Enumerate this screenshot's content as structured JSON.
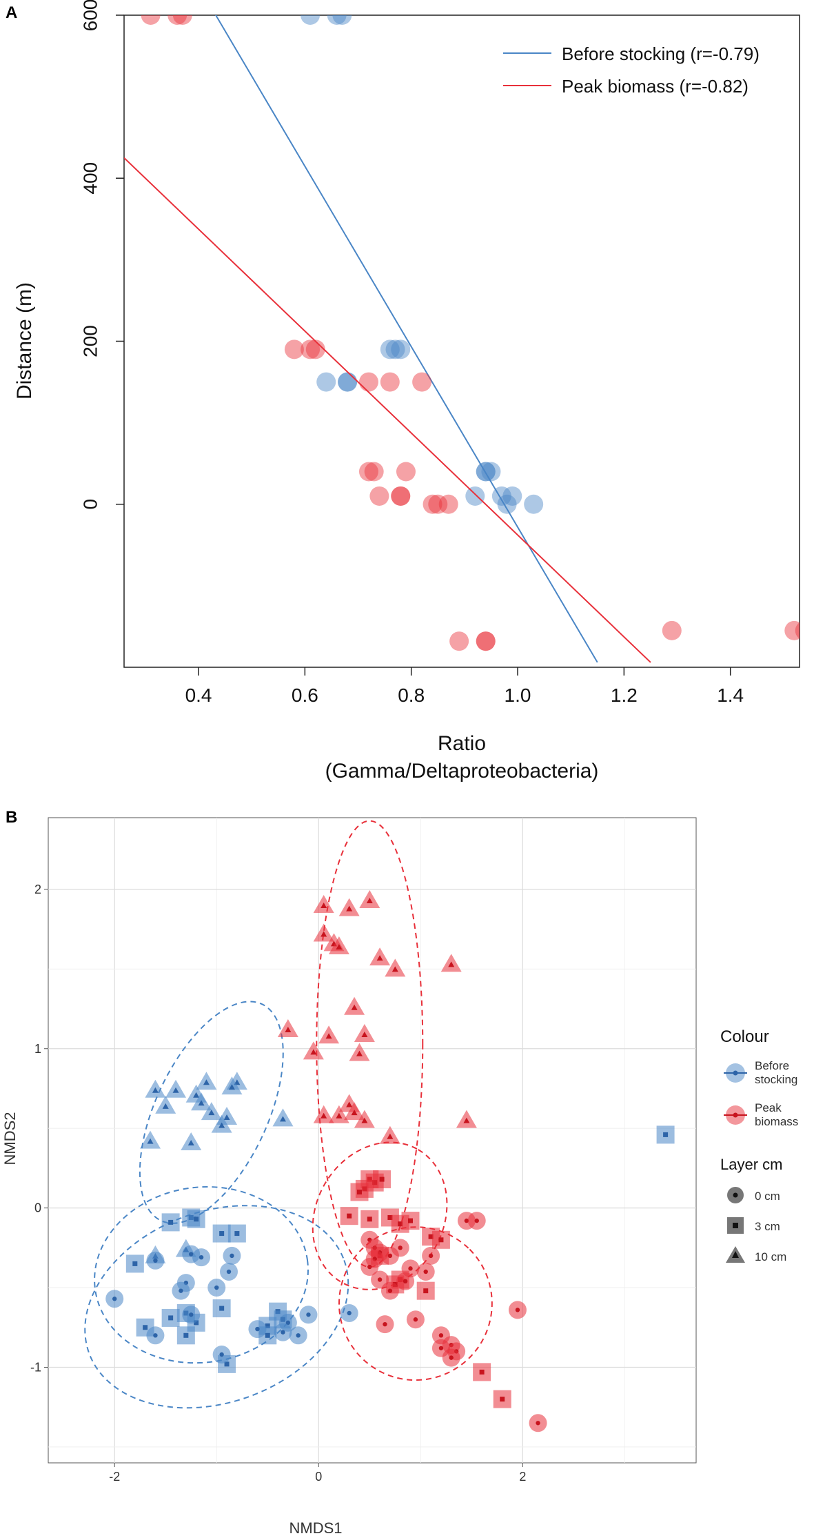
{
  "chart_data": [
    {
      "panel": "A",
      "type": "scatter",
      "title": "",
      "xlabel": "Ratio",
      "xlabel2": "(Gamma/Deltaproteobacteria)",
      "ylabel": "Distance (m)",
      "xlim": [
        0.26,
        1.53
      ],
      "ylim": [
        -200,
        600
      ],
      "xticks": [
        "0.4",
        "0.6",
        "0.8",
        "1.0",
        "1.2",
        "1.4"
      ],
      "yticks": [
        "0",
        "200",
        "400",
        "600"
      ],
      "colors": {
        "before": "#4a86c6",
        "peak": "#e8303a"
      },
      "legend": [
        "Before stocking (r=-0.79)",
        "Peak biomass (r=-0.82)"
      ],
      "series": [
        {
          "name": "Before stocking",
          "color": "#4a86c6",
          "line": {
            "x1": 0.4,
            "y1": 636,
            "x2": 1.15,
            "y2": -194
          },
          "points": [
            [
              0.61,
              600
            ],
            [
              0.66,
              600
            ],
            [
              0.67,
              600
            ],
            [
              0.77,
              190
            ],
            [
              0.78,
              190
            ],
            [
              0.76,
              190
            ],
            [
              0.64,
              150
            ],
            [
              0.68,
              150
            ],
            [
              0.68,
              150
            ],
            [
              0.94,
              40
            ],
            [
              0.95,
              40
            ],
            [
              0.94,
              40
            ],
            [
              0.92,
              10
            ],
            [
              0.97,
              10
            ],
            [
              0.99,
              10
            ],
            [
              0.98,
              0
            ],
            [
              1.03,
              0
            ]
          ]
        },
        {
          "name": "Peak biomass",
          "color": "#e8303a",
          "line": {
            "x1": 0.26,
            "y1": 425,
            "x2": 1.25,
            "y2": -194
          },
          "points": [
            [
              0.31,
              600
            ],
            [
              0.36,
              600
            ],
            [
              0.37,
              600
            ],
            [
              0.58,
              190
            ],
            [
              0.61,
              190
            ],
            [
              0.62,
              190
            ],
            [
              0.72,
              150
            ],
            [
              0.76,
              150
            ],
            [
              0.82,
              150
            ],
            [
              0.72,
              40
            ],
            [
              0.73,
              40
            ],
            [
              0.79,
              40
            ],
            [
              0.74,
              10
            ],
            [
              0.78,
              10
            ],
            [
              0.78,
              10
            ],
            [
              0.84,
              0
            ],
            [
              0.85,
              0
            ],
            [
              0.87,
              0
            ],
            [
              0.89,
              -168
            ],
            [
              0.94,
              -168
            ],
            [
              0.94,
              -168
            ],
            [
              1.29,
              -155
            ],
            [
              1.52,
              -155
            ],
            [
              1.54,
              -155
            ]
          ]
        }
      ]
    },
    {
      "panel": "B",
      "type": "scatter",
      "title": "",
      "xlabel": "NMDS1",
      "ylabel": "NMDS2",
      "xlim": [
        -2.65,
        3.7
      ],
      "ylim": [
        -1.6,
        2.45
      ],
      "xticks": [
        "-2",
        "0",
        "2"
      ],
      "yticks": [
        "-1",
        "0",
        "1",
        "2"
      ],
      "legend_colour_title": "Colour",
      "legend_colour": [
        {
          "label1": "Before",
          "label2": "stocking",
          "color": "#4a86c6"
        },
        {
          "label1": "Peak",
          "label2": "biomass",
          "color": "#e8303a"
        }
      ],
      "legend_layer_title": "Layer  cm",
      "legend_layer": [
        "0 cm",
        "3 cm",
        "10 cm"
      ],
      "ellipses": [
        {
          "group": "before-0cm",
          "color": "#4a86c6",
          "cx": -1.0,
          "cy": -0.62,
          "rx": 1.33,
          "ry": 0.6,
          "angle": 20
        },
        {
          "group": "before-3cm",
          "color": "#4a86c6",
          "cx": -1.15,
          "cy": -0.42,
          "rx": 1.05,
          "ry": 0.55,
          "angle": 8
        },
        {
          "group": "before-10cm",
          "color": "#4a86c6",
          "cx": -1.05,
          "cy": 0.6,
          "rx": 0.55,
          "ry": 0.75,
          "angle": -25
        },
        {
          "group": "peak-10cm",
          "color": "#e8303a",
          "cx": 0.5,
          "cy": 1.03,
          "rx": 0.52,
          "ry": 1.4,
          "angle": 0
        },
        {
          "group": "peak-0cm",
          "color": "#e8303a",
          "cx": 0.95,
          "cy": -0.6,
          "rx": 0.75,
          "ry": 0.48,
          "angle": 45
        },
        {
          "group": "peak-3cm",
          "color": "#e8303a",
          "cx": 0.6,
          "cy": -0.05,
          "rx": 0.75,
          "ry": 0.4,
          "angle": 60
        }
      ],
      "series": [
        {
          "name": "Before stocking - 10 cm",
          "color": "#4a86c6",
          "shape": "triangle",
          "points": [
            [
              -1.6,
              0.74
            ],
            [
              -1.4,
              0.74
            ],
            [
              -1.5,
              0.64
            ],
            [
              -1.2,
              0.71
            ],
            [
              -1.1,
              0.79
            ],
            [
              -1.15,
              0.66
            ],
            [
              -1.05,
              0.6
            ],
            [
              -0.9,
              0.57
            ],
            [
              -0.8,
              0.79
            ],
            [
              -0.85,
              0.76
            ],
            [
              -0.95,
              0.52
            ],
            [
              -1.65,
              0.42
            ],
            [
              -1.25,
              0.41
            ],
            [
              -0.35,
              0.56
            ],
            [
              -1.6,
              -0.3
            ],
            [
              -1.3,
              -0.26
            ]
          ]
        },
        {
          "name": "Before stocking - 3 cm",
          "color": "#4a86c6",
          "shape": "square",
          "points": [
            [
              -1.45,
              -0.09
            ],
            [
              -1.25,
              -0.06
            ],
            [
              -1.2,
              -0.07
            ],
            [
              -0.95,
              -0.16
            ],
            [
              -0.8,
              -0.16
            ],
            [
              -1.8,
              -0.35
            ],
            [
              -1.7,
              -0.75
            ],
            [
              -1.45,
              -0.69
            ],
            [
              -1.3,
              -0.66
            ],
            [
              -1.2,
              -0.72
            ],
            [
              -1.3,
              -0.8
            ],
            [
              -0.95,
              -0.63
            ],
            [
              -0.9,
              -0.98
            ],
            [
              -0.5,
              -0.74
            ],
            [
              -0.4,
              -0.65
            ],
            [
              -0.35,
              -0.7
            ],
            [
              -0.5,
              -0.8
            ],
            [
              3.4,
              0.46
            ]
          ]
        },
        {
          "name": "Before stocking - 0 cm",
          "color": "#4a86c6",
          "shape": "circle",
          "points": [
            [
              -2.0,
              -0.57
            ],
            [
              -1.6,
              -0.33
            ],
            [
              -1.3,
              -0.47
            ],
            [
              -1.25,
              -0.29
            ],
            [
              -1.15,
              -0.31
            ],
            [
              -0.85,
              -0.3
            ],
            [
              -0.88,
              -0.4
            ],
            [
              -1.0,
              -0.5
            ],
            [
              -1.35,
              -0.52
            ],
            [
              -1.25,
              -0.67
            ],
            [
              -1.6,
              -0.8
            ],
            [
              -0.95,
              -0.92
            ],
            [
              -0.6,
              -0.76
            ],
            [
              -0.3,
              -0.72
            ],
            [
              -0.2,
              -0.8
            ],
            [
              -0.1,
              -0.67
            ],
            [
              0.3,
              -0.66
            ],
            [
              -0.35,
              -0.78
            ]
          ]
        },
        {
          "name": "Peak biomass - 10 cm",
          "color": "#e8303a",
          "shape": "triangle",
          "points": [
            [
              0.05,
              1.9
            ],
            [
              0.3,
              1.88
            ],
            [
              0.5,
              1.93
            ],
            [
              0.05,
              1.72
            ],
            [
              0.15,
              1.66
            ],
            [
              0.2,
              1.64
            ],
            [
              0.6,
              1.57
            ],
            [
              0.75,
              1.5
            ],
            [
              1.3,
              1.53
            ],
            [
              0.35,
              1.26
            ],
            [
              -0.3,
              1.12
            ],
            [
              0.1,
              1.08
            ],
            [
              0.45,
              1.09
            ],
            [
              -0.05,
              0.98
            ],
            [
              0.4,
              0.97
            ],
            [
              0.3,
              0.65
            ],
            [
              0.35,
              0.6
            ],
            [
              0.2,
              0.58
            ],
            [
              0.05,
              0.58
            ],
            [
              0.45,
              0.55
            ],
            [
              0.7,
              0.45
            ],
            [
              1.45,
              0.55
            ]
          ]
        },
        {
          "name": "Peak biomass - 3 cm",
          "color": "#e8303a",
          "shape": "square",
          "points": [
            [
              0.5,
              0.18
            ],
            [
              0.55,
              0.16
            ],
            [
              0.62,
              0.18
            ],
            [
              0.45,
              0.12
            ],
            [
              0.4,
              0.1
            ],
            [
              0.3,
              -0.05
            ],
            [
              0.5,
              -0.07
            ],
            [
              0.7,
              -0.06
            ],
            [
              0.8,
              -0.1
            ],
            [
              0.9,
              -0.08
            ],
            [
              1.1,
              -0.18
            ],
            [
              1.2,
              -0.2
            ],
            [
              0.6,
              -0.3
            ],
            [
              0.8,
              -0.45
            ],
            [
              0.75,
              -0.48
            ],
            [
              1.05,
              -0.52
            ],
            [
              1.6,
              -1.03
            ],
            [
              1.8,
              -1.2
            ]
          ]
        },
        {
          "name": "Peak biomass - 0 cm",
          "color": "#e8303a",
          "shape": "circle",
          "points": [
            [
              0.5,
              -0.2
            ],
            [
              0.55,
              -0.25
            ],
            [
              0.6,
              -0.28
            ],
            [
              0.55,
              -0.32
            ],
            [
              0.7,
              -0.3
            ],
            [
              0.5,
              -0.37
            ],
            [
              0.8,
              -0.25
            ],
            [
              0.9,
              -0.38
            ],
            [
              1.1,
              -0.3
            ],
            [
              1.05,
              -0.4
            ],
            [
              0.85,
              -0.46
            ],
            [
              0.6,
              -0.45
            ],
            [
              0.7,
              -0.52
            ],
            [
              1.45,
              -0.08
            ],
            [
              1.55,
              -0.08
            ],
            [
              0.65,
              -0.73
            ],
            [
              0.95,
              -0.7
            ],
            [
              1.2,
              -0.8
            ],
            [
              1.3,
              -0.86
            ],
            [
              1.35,
              -0.9
            ],
            [
              1.2,
              -0.88
            ],
            [
              1.3,
              -0.94
            ],
            [
              1.95,
              -0.64
            ],
            [
              2.15,
              -1.35
            ]
          ]
        }
      ]
    }
  ]
}
